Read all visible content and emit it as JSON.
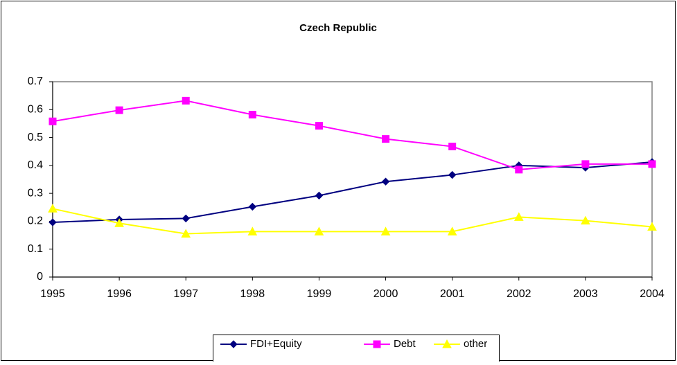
{
  "chart_data": {
    "type": "line",
    "title": "Czech Republic",
    "categories": [
      "1995",
      "1996",
      "1997",
      "1998",
      "1999",
      "2000",
      "2001",
      "2002",
      "2003",
      "2004"
    ],
    "series": [
      {
        "name": "FDI+Equity",
        "color": "#000080",
        "marker": "diamond",
        "values": [
          0.196,
          0.206,
          0.21,
          0.252,
          0.292,
          0.342,
          0.366,
          0.4,
          0.392,
          0.412
        ]
      },
      {
        "name": "Debt",
        "color": "#ff00ff",
        "marker": "square",
        "values": [
          0.558,
          0.598,
          0.632,
          0.582,
          0.542,
          0.495,
          0.468,
          0.385,
          0.405,
          0.405
        ]
      },
      {
        "name": "other",
        "color": "#ffff00",
        "marker": "triangle",
        "values": [
          0.245,
          0.193,
          0.155,
          0.163,
          0.163,
          0.163,
          0.163,
          0.215,
          0.202,
          0.18
        ]
      }
    ],
    "ylim": [
      0,
      0.7
    ],
    "yticks": [
      0,
      0.1,
      0.2,
      0.3,
      0.4,
      0.5,
      0.6,
      0.7
    ],
    "grid": false,
    "legend": "bottom"
  }
}
